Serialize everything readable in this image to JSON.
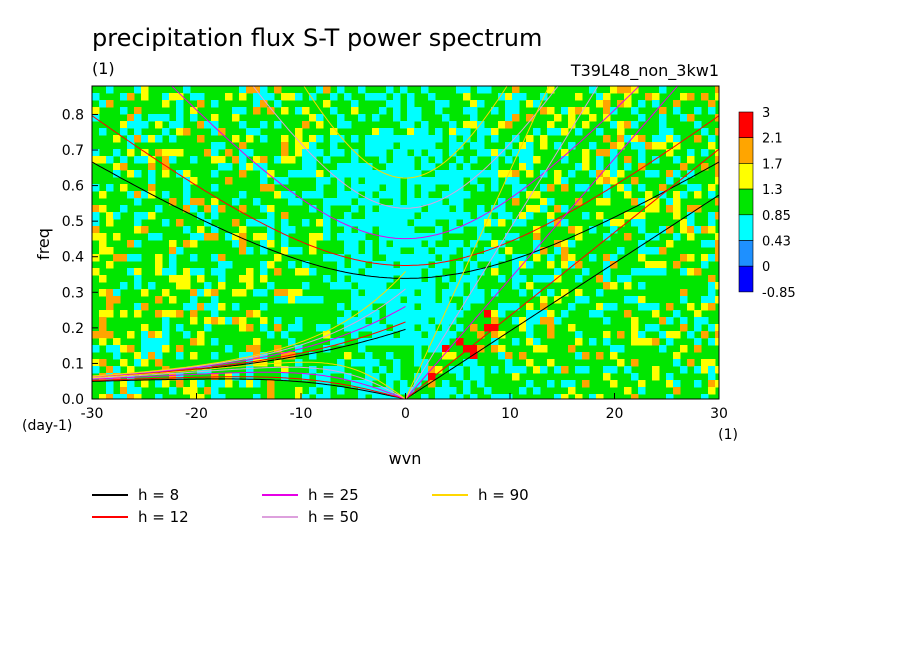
{
  "chart_data": {
    "type": "heatmap",
    "title": "precipitation flux S-T power spectrum",
    "subtitle_left": "(1)",
    "subtitle_right": "T39L48_non_3kw1",
    "xlabel": "wvn",
    "ylabel": "freq",
    "x_unit": "(1)",
    "y_unit": "(day-1)",
    "xlim": [
      -30,
      30
    ],
    "ylim": [
      0.0,
      0.88
    ],
    "x_ticks": [
      "-30",
      "-20",
      "-10",
      "0",
      "10",
      "20",
      "30"
    ],
    "x_tick_values": [
      -30,
      -20,
      -10,
      0,
      10,
      20,
      30
    ],
    "y_ticks": [
      "0.0",
      "0.1",
      "0.2",
      "0.3",
      "0.4",
      "0.5",
      "0.6",
      "0.7",
      "0.8"
    ],
    "y_tick_values": [
      0.0,
      0.1,
      0.2,
      0.3,
      0.4,
      0.5,
      0.6,
      0.7,
      0.8
    ],
    "colorbar": {
      "labels": [
        "3",
        "2.1",
        "1.7",
        "1.3",
        "0.85",
        "0.43",
        "0",
        "-0.85"
      ],
      "colors": [
        "#ff0000",
        "#ffa500",
        "#ffff00",
        "#00e600",
        "#00ffff",
        "#1e90ff",
        "#0000ff"
      ],
      "levels": [
        -0.85,
        0,
        0.43,
        0.85,
        1.3,
        1.7,
        2.1,
        3
      ]
    },
    "background_level": "0.85–1.3 (green) with cyan 0.43–0.85 near wvn 0, freq 0.2–0.7; yellow/orange/red maxima along Kelvin-wave lines at wvn 3–7, freq 0.0–0.25",
    "dispersion_curves": [
      {
        "name": "h =  8",
        "color": "#000000"
      },
      {
        "name": "h = 12",
        "color": "#ff0000"
      },
      {
        "name": "h = 25",
        "color": "#e600e6"
      },
      {
        "name": "h = 50",
        "color": "#dda0dd"
      },
      {
        "name": "h = 90",
        "color": "#ffd700"
      }
    ],
    "equivalent_depths_m": [
      8,
      12,
      25,
      50,
      90
    ],
    "legend_placement": "below"
  }
}
